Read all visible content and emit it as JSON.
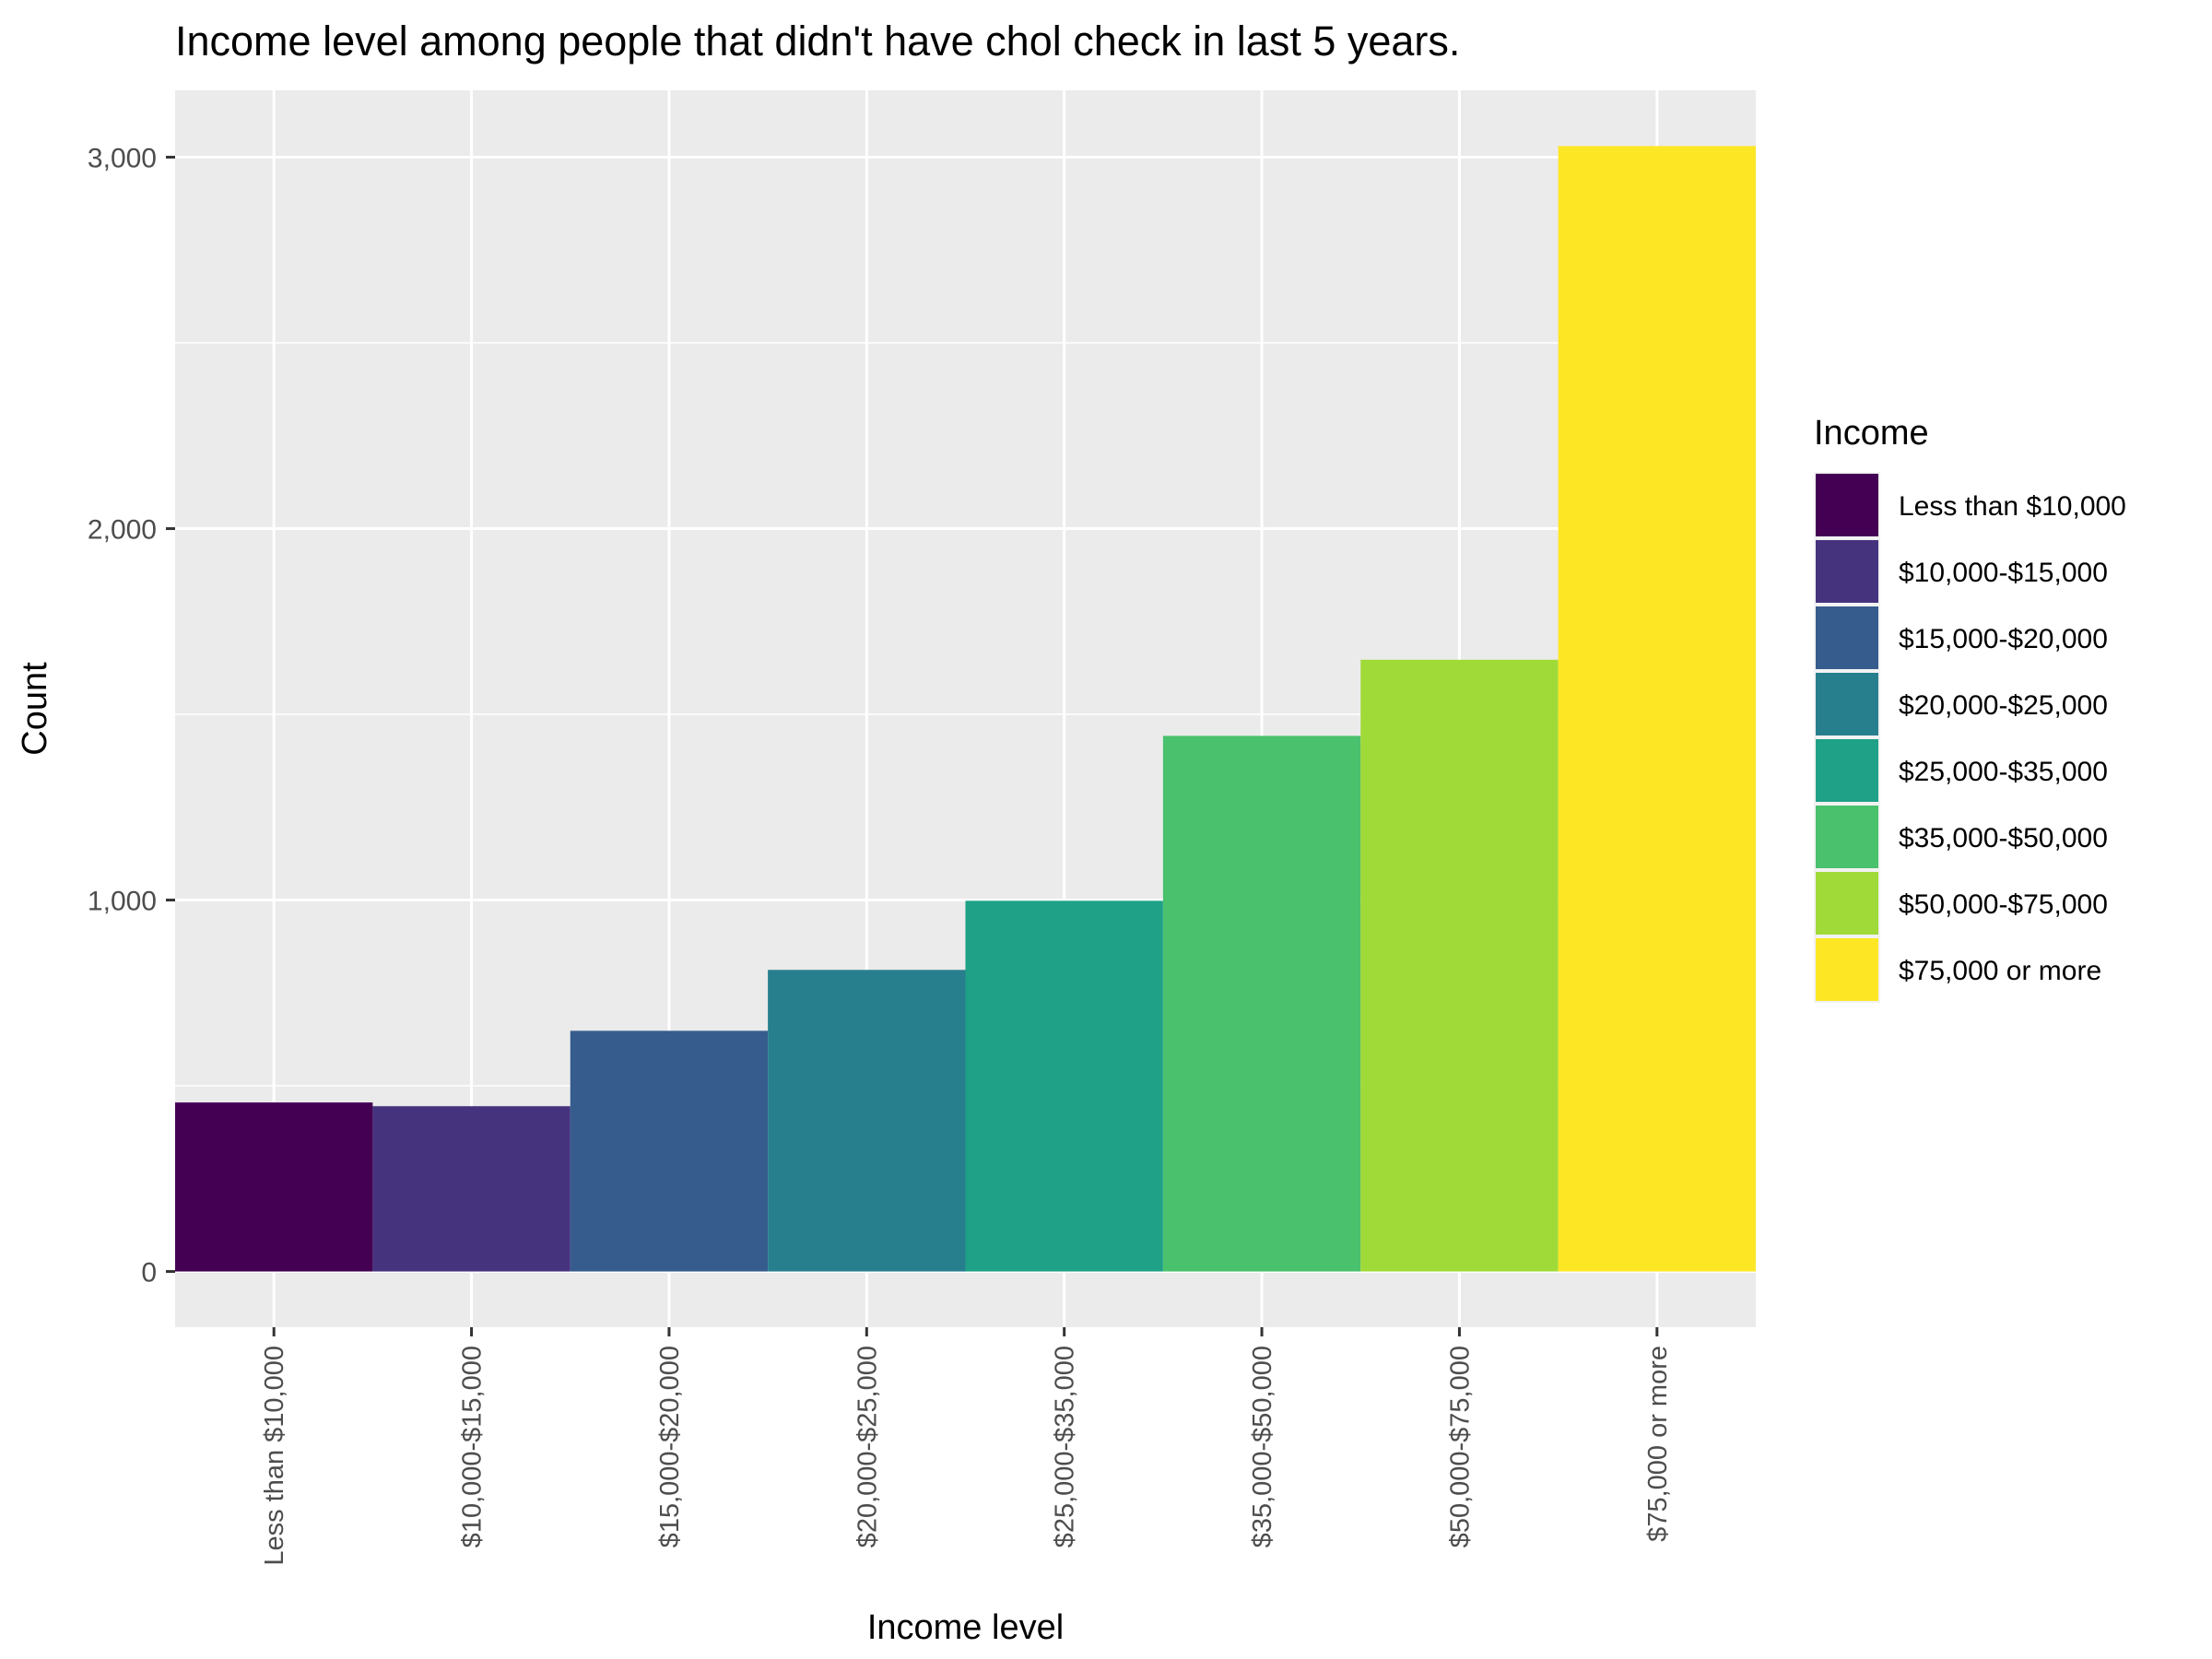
{
  "chart_data": {
    "type": "bar",
    "title": "Income level among people that didn't have chol check in last 5 years.",
    "xlabel": "Income level",
    "ylabel": "Count",
    "categories": [
      "Less than $10,000",
      "$10,000-$15,000",
      "$15,000-$20,000",
      "$20,000-$25,000",
      "$25,000-$35,000",
      "$35,000-$50,000",
      "$50,000-$75,000",
      "$75,000 or more"
    ],
    "values": [
      455,
      445,
      648,
      812,
      998,
      1442,
      1647,
      3030
    ],
    "colors": [
      "#440154",
      "#46337E",
      "#365C8D",
      "#277F8E",
      "#1FA187",
      "#4AC16D",
      "#A0DA39",
      "#FDE725"
    ],
    "ylim": [
      -150,
      3180
    ],
    "yticks": [
      0,
      1000,
      2000,
      3000
    ],
    "ytick_labels": [
      "0",
      "1,000",
      "2,000",
      "3,000"
    ],
    "grid": true,
    "legend": {
      "title": "Income",
      "placement": "right",
      "entries": [
        "Less than $10,000",
        "$10,000-$15,000",
        "$15,000-$20,000",
        "$20,000-$25,000",
        "$25,000-$35,000",
        "$35,000-$50,000",
        "$50,000-$75,000",
        "$75,000 or more"
      ]
    }
  }
}
